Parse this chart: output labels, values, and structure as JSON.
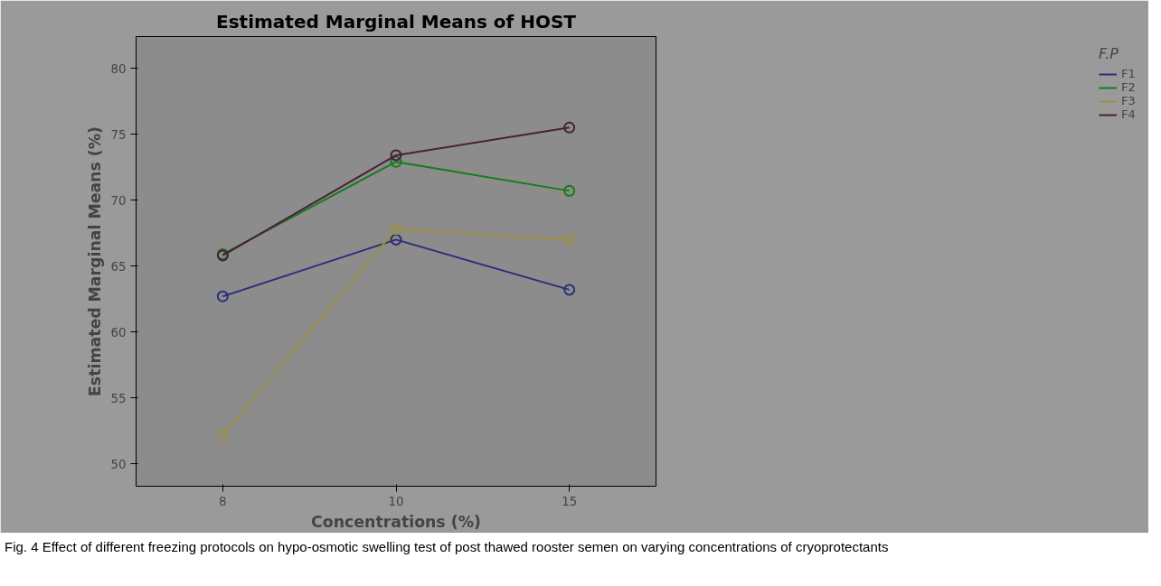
{
  "chart_data": {
    "type": "line",
    "title": "Estimated Marginal Means of HOST",
    "xlabel": "Concentrations (%)",
    "ylabel": "Estimated Marginal Means (%)",
    "legend_title": "F.P",
    "categories": [
      "8",
      "10",
      "15"
    ],
    "series": [
      {
        "name": "F1",
        "color": "#2b2f7a",
        "values": [
          62.7,
          67.0,
          63.2
        ]
      },
      {
        "name": "F2",
        "color": "#1a7a1a",
        "values": [
          65.9,
          72.9,
          70.7
        ]
      },
      {
        "name": "F3",
        "color": "#9c9140",
        "values": [
          52.2,
          67.8,
          67.0
        ]
      },
      {
        "name": "F4",
        "color": "#4a1f3a",
        "values": [
          65.8,
          73.4,
          75.5
        ]
      }
    ],
    "ylim": [
      48.3,
      82.4
    ],
    "yticks": [
      50,
      55,
      60,
      65,
      70,
      75,
      80
    ],
    "grid": false,
    "legend": "right",
    "marker": "circle",
    "line_style": "solid",
    "annotations": [
      "Fig. 4 Effect of different freezing protocols on hypo-osmotic swelling test of post thawed rooster semen on varying concentrations of cryoprotectants"
    ]
  }
}
